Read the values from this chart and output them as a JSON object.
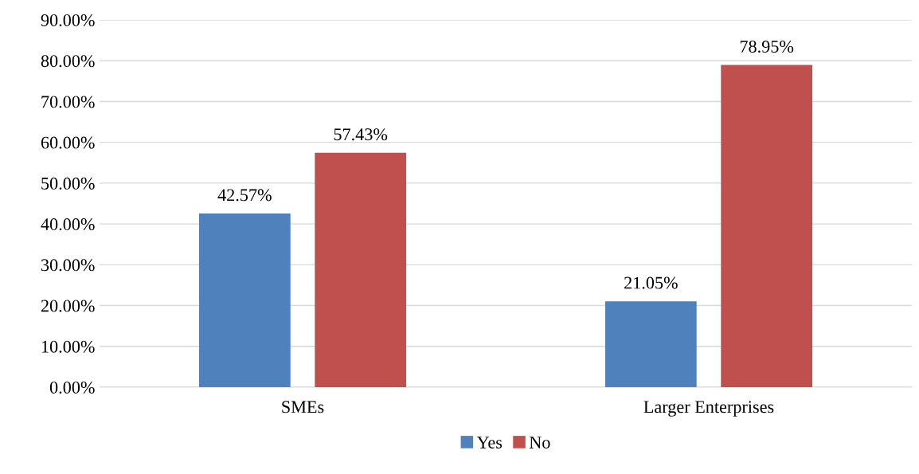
{
  "chart_data": {
    "type": "bar",
    "categories": [
      "SMEs",
      "Larger Enterprises"
    ],
    "series": [
      {
        "name": "Yes",
        "color": "#4f81bd",
        "values": [
          42.57,
          21.05
        ],
        "value_labels": [
          "42.57%",
          "21.05%"
        ]
      },
      {
        "name": "No",
        "color": "#c0504d",
        "values": [
          57.43,
          78.95
        ],
        "value_labels": [
          "57.43%",
          "78.95%"
        ]
      }
    ],
    "ylim": [
      0,
      90
    ],
    "yticks": [
      {
        "value": 0,
        "label": "0.00%"
      },
      {
        "value": 10,
        "label": "10.00%"
      },
      {
        "value": 20,
        "label": "20.00%"
      },
      {
        "value": 30,
        "label": "30.00%"
      },
      {
        "value": 40,
        "label": "40.00%"
      },
      {
        "value": 50,
        "label": "50.00%"
      },
      {
        "value": 60,
        "label": "60.00%"
      },
      {
        "value": 70,
        "label": "70.00%"
      },
      {
        "value": 80,
        "label": "80.00%"
      },
      {
        "value": 90,
        "label": "90.00%"
      }
    ],
    "grid": "y",
    "legend": "bottom"
  }
}
